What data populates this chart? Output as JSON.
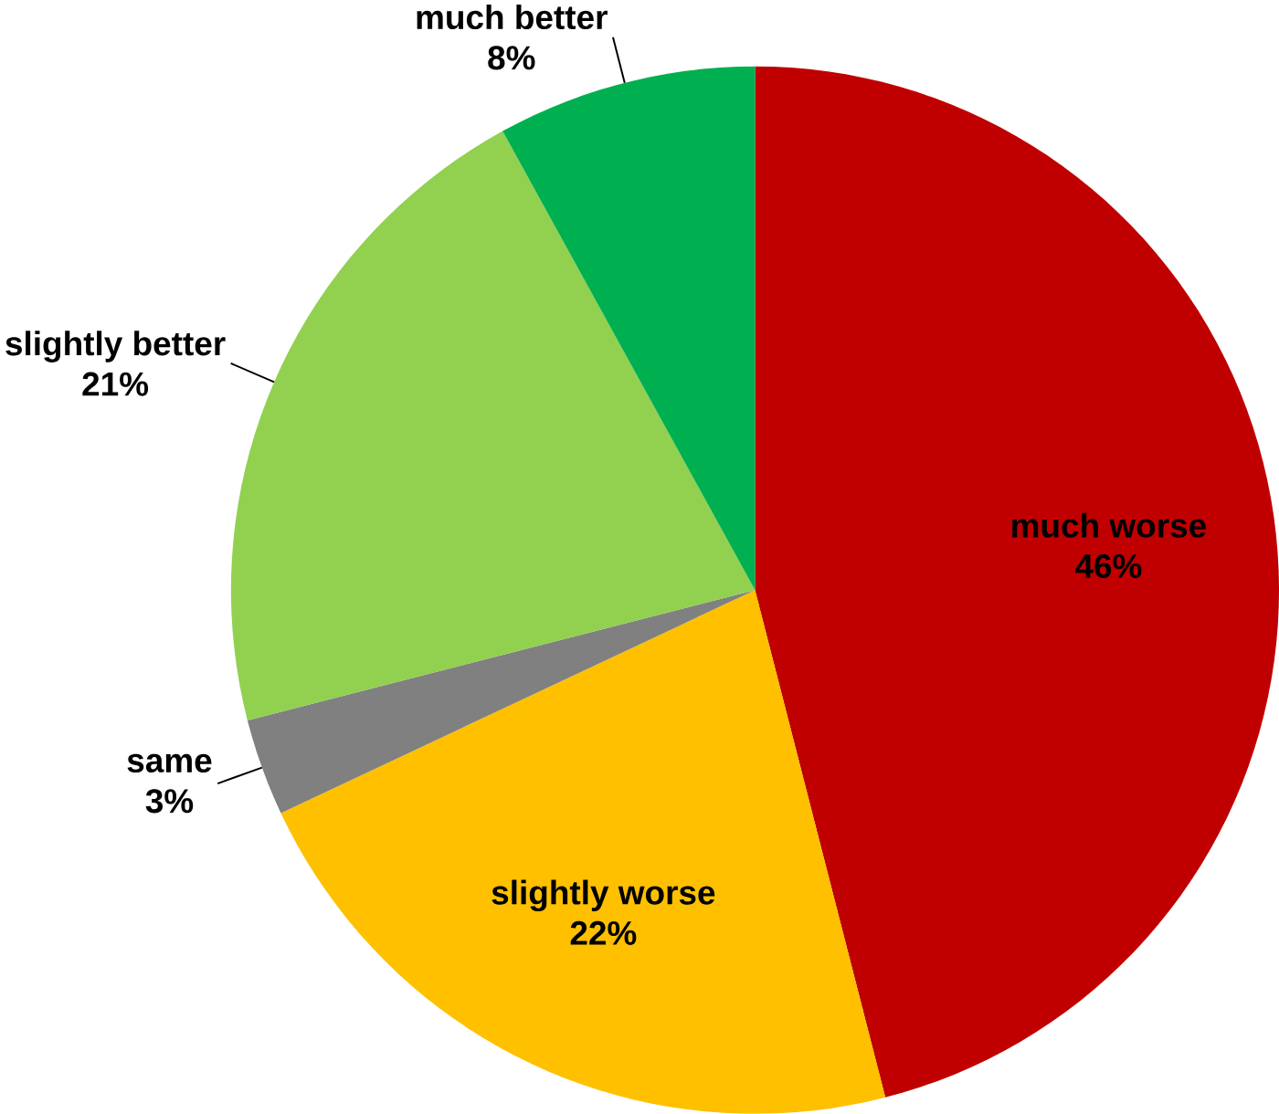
{
  "chart_data": {
    "type": "pie",
    "categories": [
      "much worse",
      "slightly worse",
      "same",
      "slightly better",
      "much better"
    ],
    "values": [
      46,
      22,
      3,
      21,
      8
    ],
    "value_labels": [
      "46%",
      "22%",
      "3%",
      "21%",
      "8%"
    ],
    "colors": [
      "#c00000",
      "#ffc000",
      "#808080",
      "#92d050",
      "#00b050"
    ]
  }
}
